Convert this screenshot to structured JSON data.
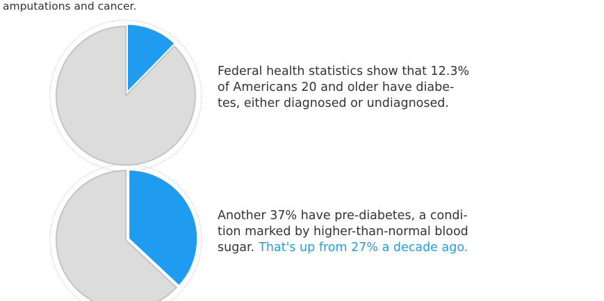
{
  "intro": "amputations and cancer.",
  "chart_data": [
    {
      "type": "pie",
      "values": [
        12.3,
        87.7
      ],
      "colors": [
        "#1f9cf0",
        "#dcdcdc"
      ]
    },
    {
      "type": "pie",
      "values": [
        37,
        63
      ],
      "colors": [
        "#1f9cf0",
        "#dcdcdc"
      ]
    }
  ],
  "notes": [
    {
      "lines": [
        "Federal health statistics show that 12.3%",
        "of Americans 20 and older have diabe-",
        "tes, either diagnosed or undiagnosed."
      ]
    },
    {
      "lines": [
        "Another 37% have pre-diabetes, a condi-",
        "tion marked by higher-than-normal blood",
        "sugar."
      ],
      "highlight": "That's up from 27% a decade ago."
    }
  ]
}
